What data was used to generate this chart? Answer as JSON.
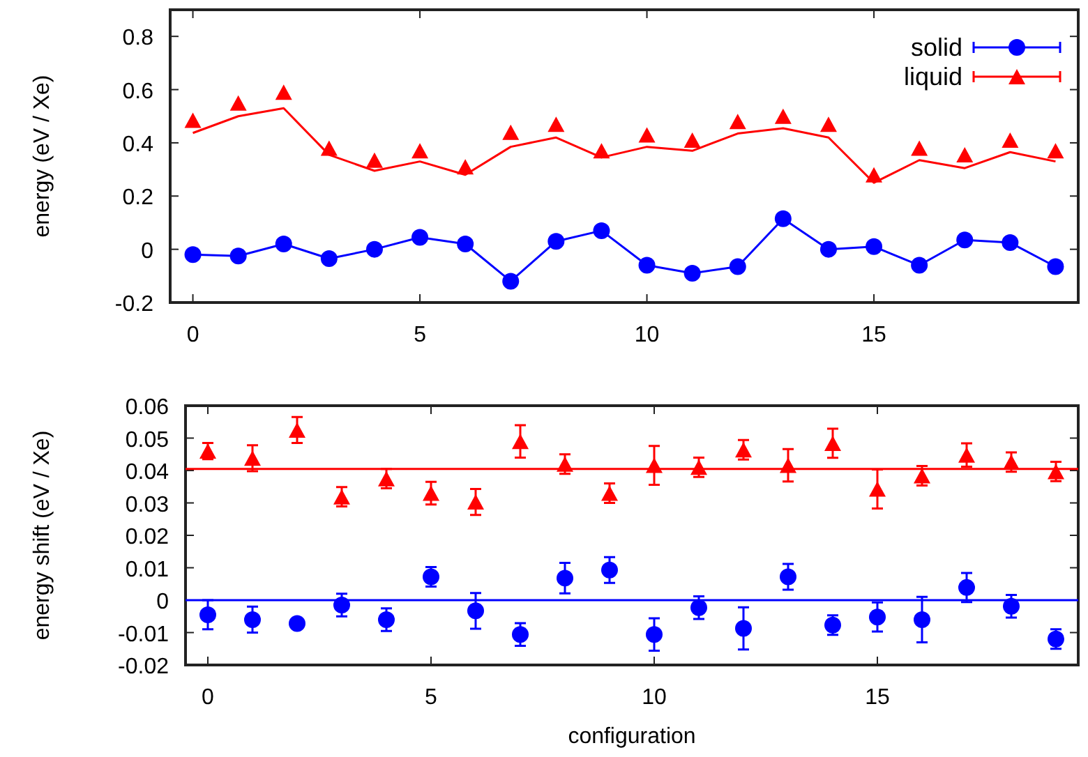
{
  "chart_data": [
    {
      "type": "line",
      "ylabel": "energy (eV / Xe)",
      "xlim": [
        -0.5,
        19.5
      ],
      "xticks": [
        0,
        5,
        10,
        15
      ],
      "ylim": [
        -0.2,
        0.9
      ],
      "yticks": [
        -0.2,
        0,
        0.2,
        0.4,
        0.6,
        0.8
      ],
      "legend": "top right",
      "x": [
        0,
        1,
        2,
        3,
        4,
        5,
        6,
        7,
        8,
        9,
        10,
        11,
        12,
        13,
        14,
        15,
        16,
        17,
        18,
        19
      ],
      "series": [
        {
          "name": "solid",
          "marker": "circle",
          "color": "#0000ff",
          "values": [
            -0.02,
            -0.025,
            0.02,
            -0.035,
            0.0,
            0.045,
            0.02,
            -0.12,
            0.03,
            0.07,
            -0.06,
            -0.09,
            -0.065,
            0.115,
            0.0,
            0.01,
            -0.06,
            0.035,
            0.025,
            -0.065
          ]
        },
        {
          "name": "liquid",
          "type": "scatter",
          "marker": "triangle",
          "color": "#ff0000",
          "values": [
            0.485,
            0.55,
            0.59,
            0.38,
            0.335,
            0.37,
            0.31,
            0.44,
            0.47,
            0.37,
            0.43,
            0.41,
            0.48,
            0.5,
            0.47,
            0.28,
            0.38,
            0.355,
            0.41,
            0.37
          ]
        },
        {
          "type": "line",
          "marker": "none",
          "color": "#ff0000",
          "values": [
            0.437,
            0.5,
            0.53,
            0.355,
            0.295,
            0.33,
            0.28,
            0.385,
            0.42,
            0.345,
            0.385,
            0.37,
            0.435,
            0.455,
            0.42,
            0.25,
            0.335,
            0.305,
            0.365,
            0.33
          ]
        }
      ]
    },
    {
      "type": "scatter",
      "xlabel": "configuration",
      "ylabel": "energy shift (eV / Xe)",
      "xlim": [
        -0.5,
        19.5
      ],
      "xticks": [
        0,
        5,
        10,
        15
      ],
      "ylim": [
        -0.02,
        0.06
      ],
      "yticks": [
        -0.02,
        -0.01,
        0,
        0.01,
        0.02,
        0.03,
        0.04,
        0.05,
        0.06
      ],
      "x": [
        0,
        1,
        2,
        3,
        4,
        5,
        6,
        7,
        8,
        9,
        10,
        11,
        12,
        13,
        14,
        15,
        16,
        17,
        18,
        19
      ],
      "ref_lines": [
        {
          "axis": "y",
          "value": 0,
          "color": "#0000ff"
        },
        {
          "axis": "y",
          "value": 0.0405,
          "color": "#ff0000"
        }
      ],
      "series": [
        {
          "marker": "triangle",
          "color": "#ff0000",
          "values": [
            0.046,
            0.0438,
            0.0525,
            0.0319,
            0.0375,
            0.033,
            0.0303,
            0.049,
            0.042,
            0.033,
            0.0416,
            0.041,
            0.0464,
            0.0416,
            0.0484,
            0.0343,
            0.0384,
            0.0448,
            0.0426,
            0.0397
          ],
          "errors": [
            0.0025,
            0.004,
            0.004,
            0.003,
            0.003,
            0.0035,
            0.004,
            0.005,
            0.003,
            0.003,
            0.006,
            0.003,
            0.003,
            0.005,
            0.0045,
            0.006,
            0.003,
            0.0036,
            0.003,
            0.003
          ]
        },
        {
          "marker": "circle",
          "color": "#0000ff",
          "values": [
            -0.0045,
            -0.006,
            -0.0072,
            -0.0015,
            -0.006,
            0.0072,
            -0.0033,
            -0.0106,
            0.0068,
            0.0093,
            -0.0106,
            -0.0023,
            -0.0087,
            0.0072,
            -0.0077,
            -0.0052,
            -0.006,
            0.0039,
            -0.0019,
            -0.012
          ],
          "errors": [
            0.0045,
            0.004,
            0.001,
            0.0035,
            0.0035,
            0.003,
            0.0055,
            0.0035,
            0.0047,
            0.004,
            0.005,
            0.0035,
            0.0065,
            0.004,
            0.003,
            0.0045,
            0.007,
            0.0045,
            0.0035,
            0.003
          ]
        }
      ]
    }
  ]
}
